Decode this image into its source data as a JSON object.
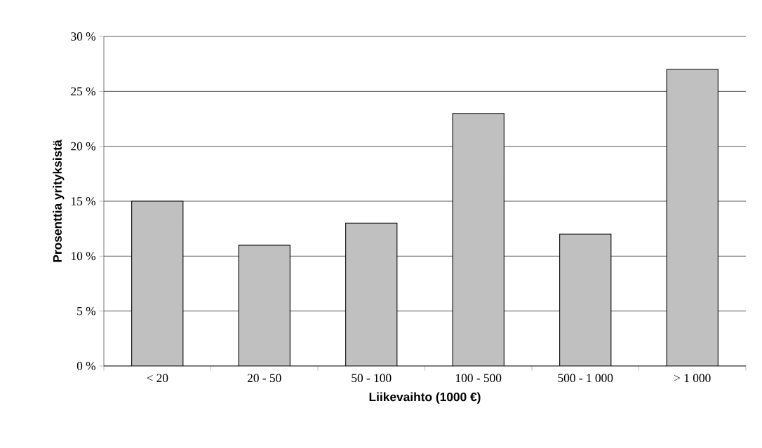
{
  "chart_data": {
    "type": "bar",
    "xlabel": "Liikevaihto (1000 €)",
    "ylabel": "Prosenttia yrityksistä",
    "categories": [
      "< 20",
      "20 - 50",
      "50 - 100",
      "100 - 500",
      "500 - 1 000",
      "> 1 000"
    ],
    "values": [
      15,
      11,
      13,
      23,
      12,
      27
    ],
    "color": "#c0c0c0",
    "ylim": [
      0,
      30
    ],
    "yticks": [
      {
        "value": 0,
        "label": "0 %"
      },
      {
        "value": 5,
        "label": "5 %"
      },
      {
        "value": 10,
        "label": "10 %"
      },
      {
        "value": 15,
        "label": "15 %"
      },
      {
        "value": 20,
        "label": "20 %"
      },
      {
        "value": 25,
        "label": "25 %"
      },
      {
        "value": 30,
        "label": "30 %"
      }
    ],
    "grid": "y"
  }
}
